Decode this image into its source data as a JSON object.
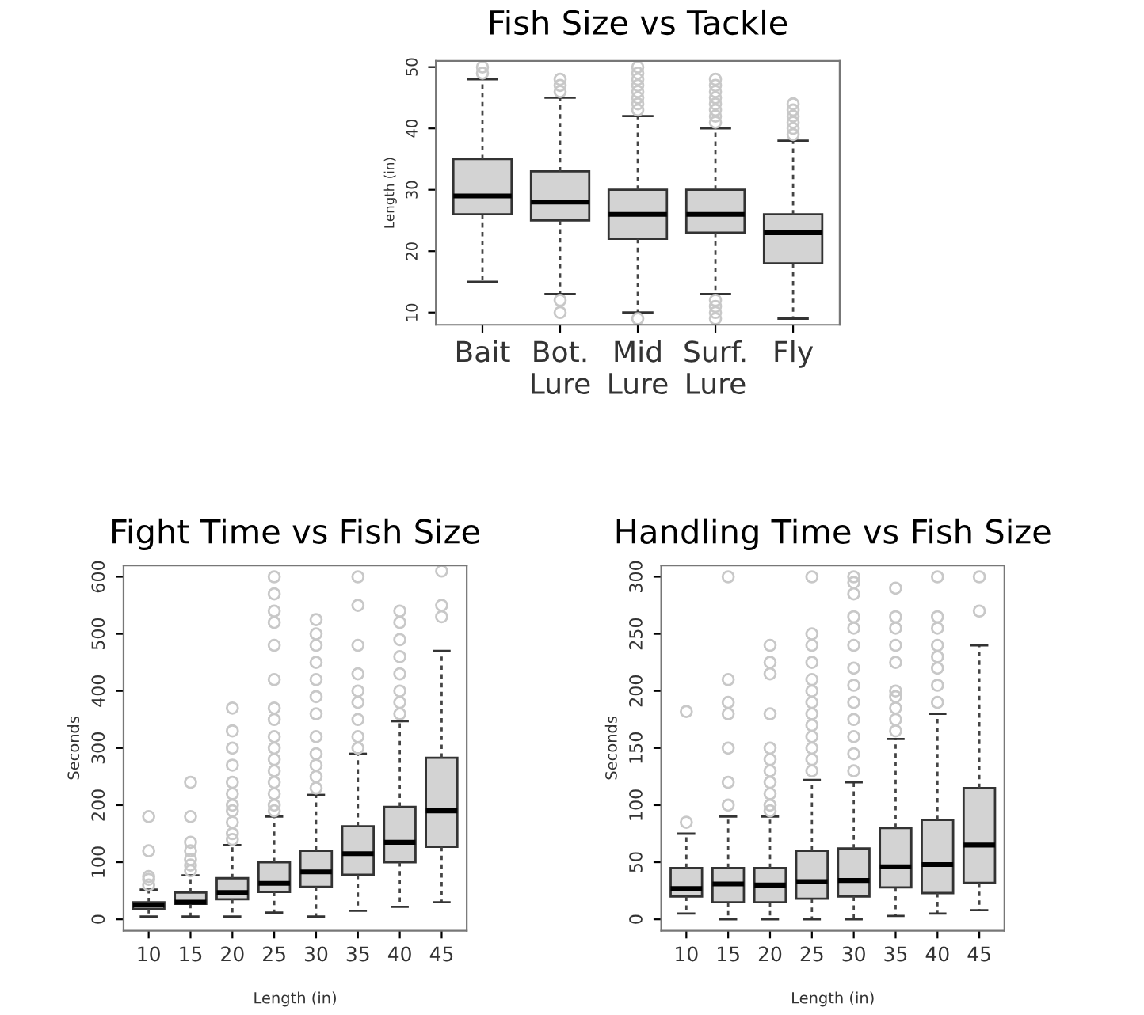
{
  "chart_data": [
    {
      "type": "box",
      "title": "Fish Size vs Tackle",
      "ylabel": "Length (in)",
      "categories": [
        "Bait",
        "Bot.\nLure",
        "Mid\nLure",
        "Surf.\nLure",
        "Fly"
      ],
      "ylim": [
        8,
        51
      ],
      "yticks": [
        10,
        20,
        30,
        40,
        50
      ],
      "grid": false,
      "boxes": [
        {
          "low": 15,
          "q1": 26,
          "median": 29,
          "q3": 35,
          "high": 48,
          "outliers": [
            49,
            50
          ]
        },
        {
          "low": 13,
          "q1": 25,
          "median": 28,
          "q3": 33,
          "high": 45,
          "outliers": [
            10,
            12,
            46,
            47,
            48
          ]
        },
        {
          "low": 10,
          "q1": 22,
          "median": 26,
          "q3": 30,
          "high": 42,
          "outliers": [
            9,
            43,
            44,
            45,
            46,
            47,
            48,
            49,
            50
          ]
        },
        {
          "low": 13,
          "q1": 23,
          "median": 26,
          "q3": 30,
          "high": 40,
          "outliers": [
            9,
            10,
            11,
            12,
            41,
            42,
            43,
            44,
            45,
            46,
            47,
            48
          ]
        },
        {
          "low": 9,
          "q1": 18,
          "median": 23,
          "q3": 26,
          "high": 38,
          "outliers": [
            39,
            40,
            41,
            42,
            43,
            44
          ]
        }
      ]
    },
    {
      "type": "box",
      "title": "Fight Time vs Fish Size",
      "xlabel": "Length (in)",
      "ylabel": "Seconds",
      "categories": [
        "10",
        "15",
        "20",
        "25",
        "30",
        "35",
        "40",
        "45"
      ],
      "ylim": [
        -20,
        620
      ],
      "yticks": [
        0,
        100,
        200,
        300,
        400,
        500,
        600
      ],
      "grid": false,
      "boxes": [
        {
          "low": 5,
          "q1": 18,
          "median": 25,
          "q3": 30,
          "high": 52,
          "outliers": [
            60,
            70,
            75,
            120,
            180
          ]
        },
        {
          "low": 5,
          "q1": 27,
          "median": 30,
          "q3": 47,
          "high": 77,
          "outliers": [
            85,
            95,
            105,
            120,
            135,
            180,
            240
          ]
        },
        {
          "low": 5,
          "q1": 35,
          "median": 47,
          "q3": 72,
          "high": 130,
          "outliers": [
            140,
            150,
            170,
            190,
            200,
            220,
            240,
            270,
            300,
            330,
            370
          ]
        },
        {
          "low": 12,
          "q1": 48,
          "median": 63,
          "q3": 100,
          "high": 180,
          "outliers": [
            190,
            200,
            220,
            240,
            260,
            280,
            300,
            320,
            350,
            370,
            420,
            480,
            520,
            540,
            570,
            600
          ]
        },
        {
          "low": 5,
          "q1": 57,
          "median": 83,
          "q3": 120,
          "high": 218,
          "outliers": [
            230,
            250,
            270,
            290,
            320,
            360,
            390,
            420,
            450,
            480,
            500,
            525
          ]
        },
        {
          "low": 15,
          "q1": 78,
          "median": 115,
          "q3": 163,
          "high": 290,
          "outliers": [
            300,
            320,
            350,
            380,
            400,
            430,
            480,
            550,
            600
          ]
        },
        {
          "low": 22,
          "q1": 100,
          "median": 135,
          "q3": 197,
          "high": 347,
          "outliers": [
            360,
            380,
            400,
            430,
            460,
            490,
            520,
            540
          ]
        },
        {
          "low": 30,
          "q1": 127,
          "median": 190,
          "q3": 283,
          "high": 470,
          "outliers": [
            530,
            550,
            610
          ]
        }
      ]
    },
    {
      "type": "box",
      "title": "Handling Time vs Fish Size",
      "xlabel": "Length (in)",
      "ylabel": "Seconds",
      "categories": [
        "10",
        "15",
        "20",
        "25",
        "30",
        "35",
        "40",
        "45"
      ],
      "ylim": [
        -10,
        310
      ],
      "yticks": [
        0,
        50,
        100,
        150,
        200,
        250,
        300
      ],
      "grid": false,
      "boxes": [
        {
          "low": 5,
          "q1": 20,
          "median": 27,
          "q3": 45,
          "high": 75,
          "outliers": [
            85,
            182
          ]
        },
        {
          "low": 0,
          "q1": 15,
          "median": 31,
          "q3": 45,
          "high": 90,
          "outliers": [
            100,
            120,
            150,
            180,
            190,
            210,
            300
          ]
        },
        {
          "low": 0,
          "q1": 15,
          "median": 30,
          "q3": 45,
          "high": 90,
          "outliers": [
            95,
            100,
            110,
            120,
            130,
            140,
            150,
            180,
            215,
            225,
            240
          ]
        },
        {
          "low": 0,
          "q1": 18,
          "median": 33,
          "q3": 60,
          "high": 122,
          "outliers": [
            130,
            140,
            150,
            160,
            170,
            180,
            190,
            200,
            210,
            225,
            240,
            250,
            300
          ]
        },
        {
          "low": 0,
          "q1": 20,
          "median": 34,
          "q3": 62,
          "high": 120,
          "outliers": [
            130,
            145,
            160,
            175,
            190,
            205,
            220,
            240,
            255,
            265,
            285,
            295,
            300
          ]
        },
        {
          "low": 3,
          "q1": 28,
          "median": 46,
          "q3": 80,
          "high": 158,
          "outliers": [
            165,
            175,
            185,
            195,
            200,
            225,
            240,
            255,
            265,
            290
          ]
        },
        {
          "low": 5,
          "q1": 23,
          "median": 48,
          "q3": 87,
          "high": 180,
          "outliers": [
            190,
            205,
            220,
            230,
            240,
            255,
            265,
            300
          ]
        },
        {
          "low": 8,
          "q1": 32,
          "median": 65,
          "q3": 115,
          "high": 240,
          "outliers": [
            270,
            300
          ]
        }
      ]
    }
  ]
}
